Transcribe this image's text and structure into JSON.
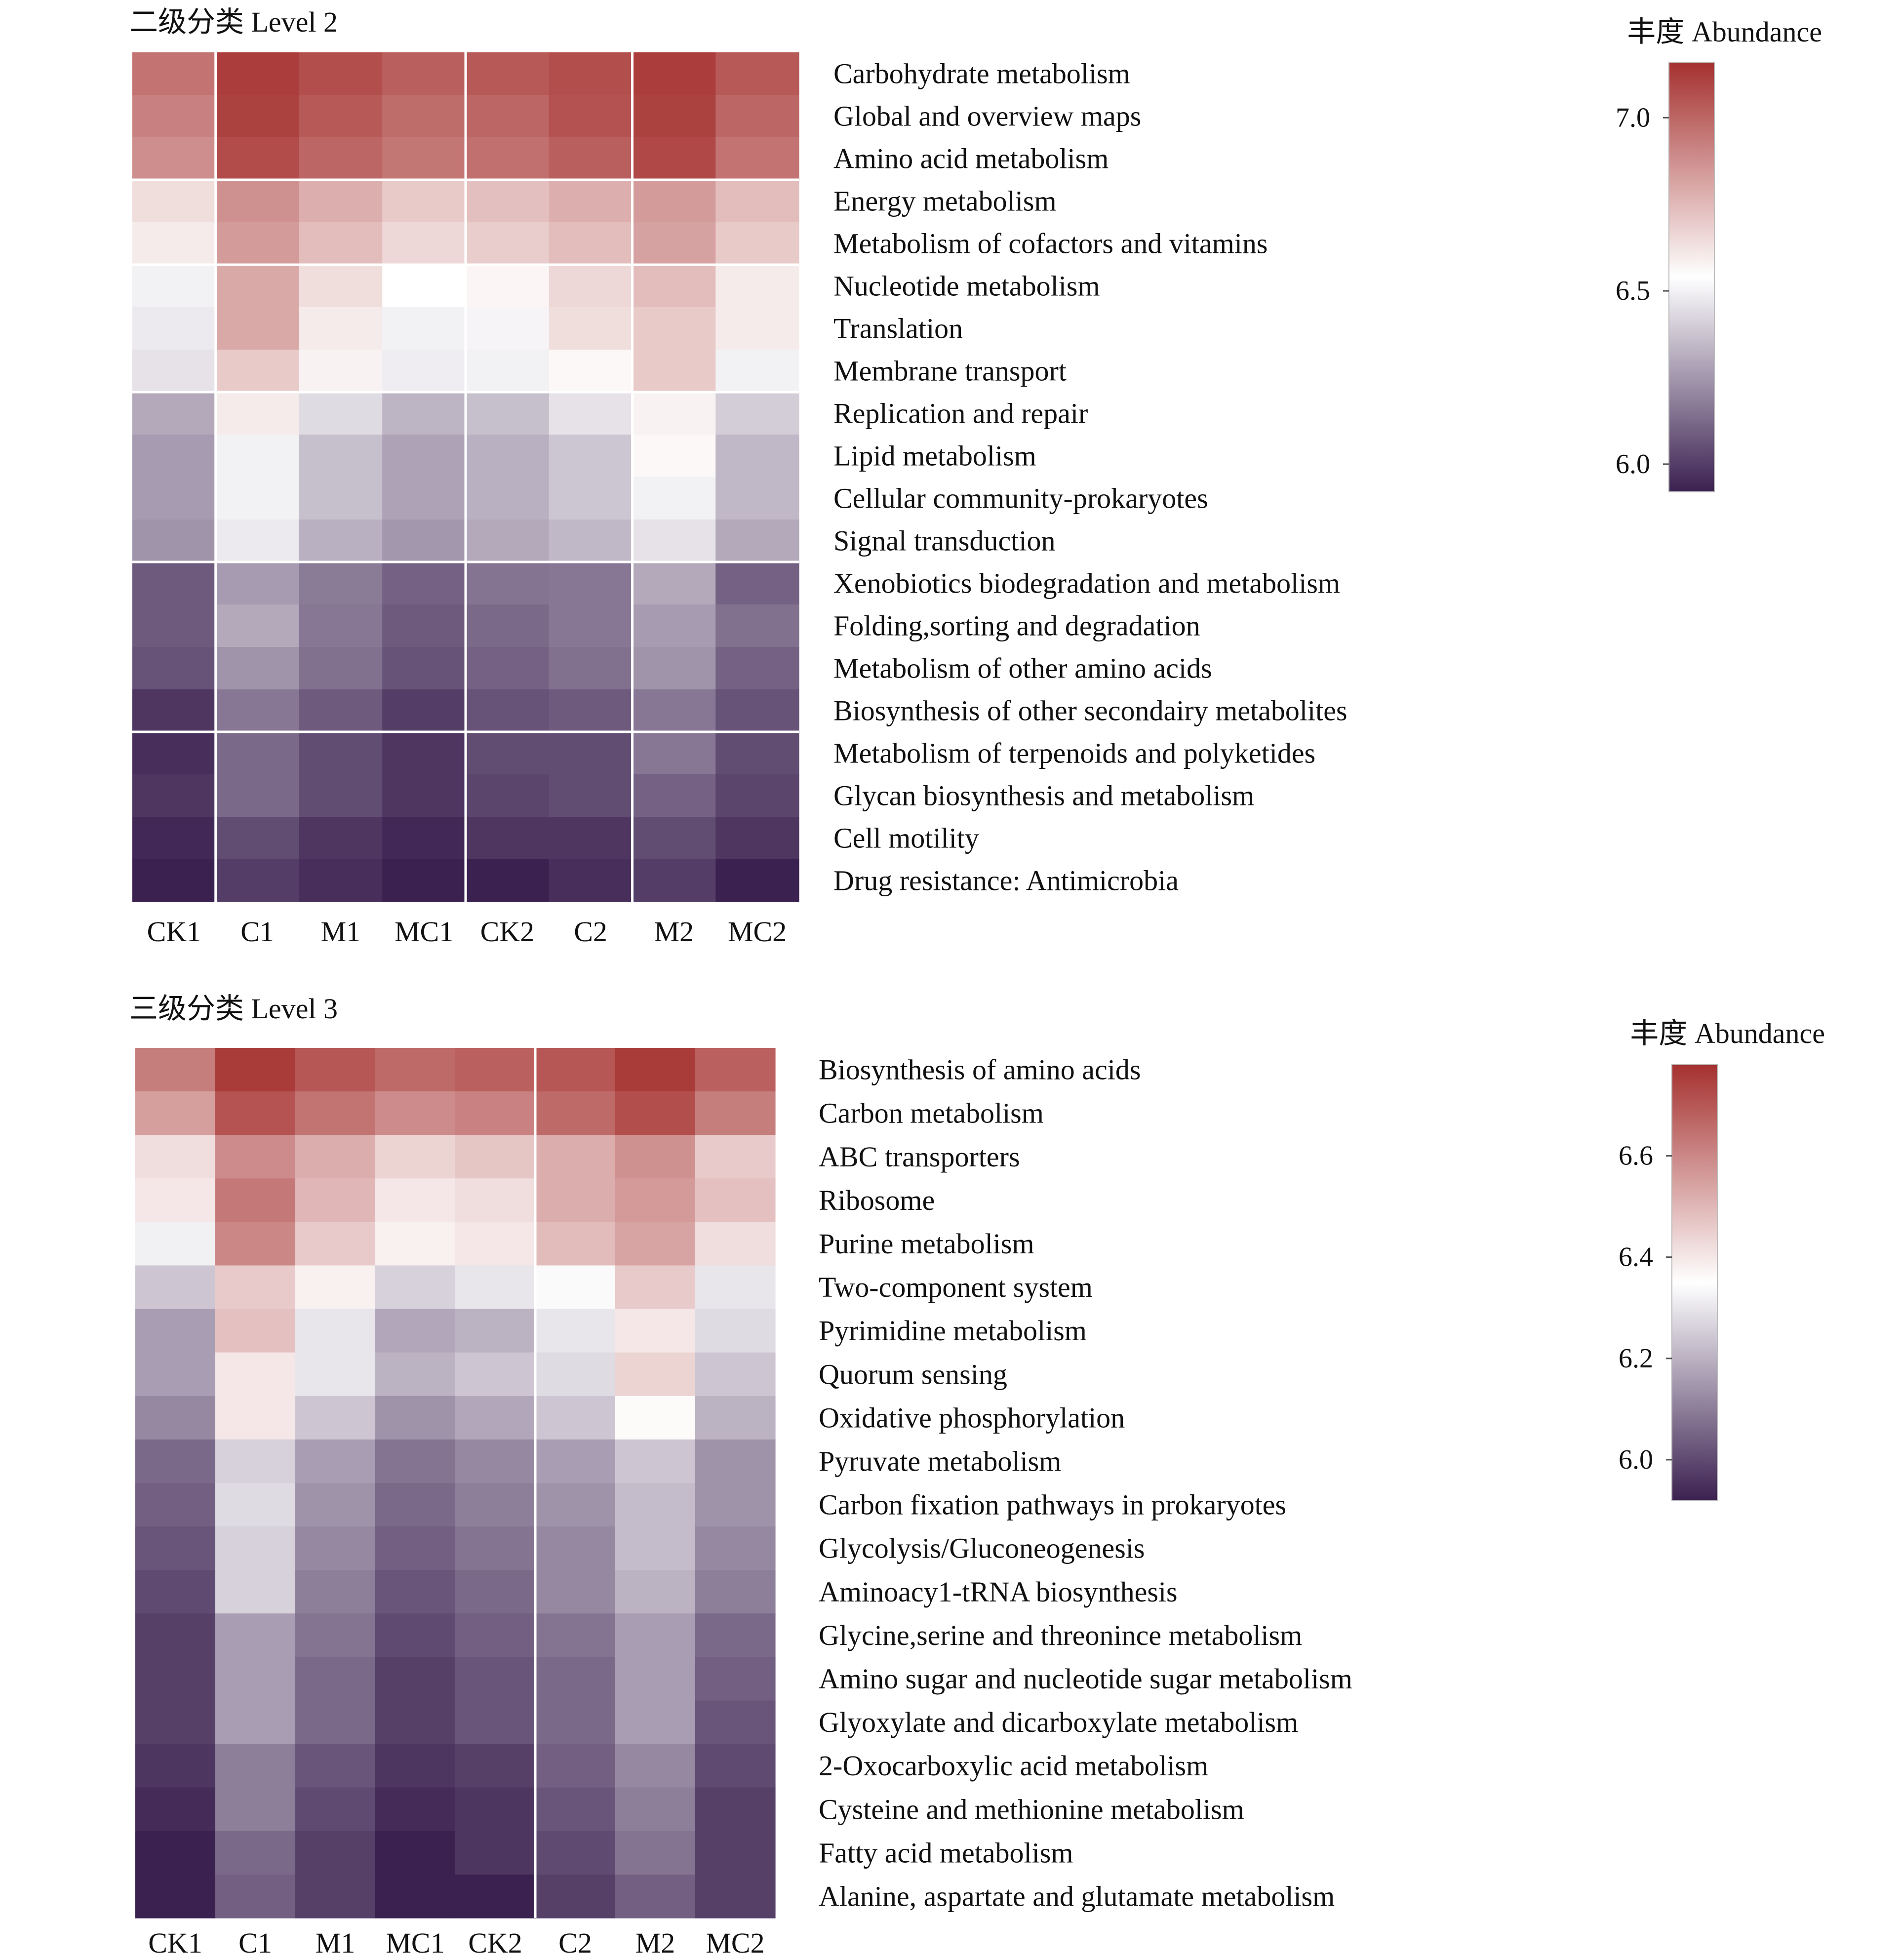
{
  "chart_data": [
    {
      "type": "heatmap",
      "title": "二级分类 Level 2",
      "legend_title": "丰度 Abundance",
      "color_scale": {
        "low": "#3b2150",
        "mid": "#ffffff",
        "high": "#a5312f"
      },
      "colorbar_range": [
        5.92,
        7.16
      ],
      "colorbar_ticks": [
        "7.0",
        "6.5",
        "6.0"
      ],
      "colorbar_tick_values": [
        7.0,
        6.5,
        6.0
      ],
      "columns": [
        "CK1",
        "C1",
        "M1",
        "MC1",
        "CK2",
        "C2",
        "M2",
        "MC2"
      ],
      "column_groups": [
        1,
        4,
        6
      ],
      "row_groups": [
        3,
        5,
        8,
        12,
        16
      ],
      "rows": [
        "Carbohydrate metabolism",
        "Global and overview maps",
        "Amino acid metabolism",
        "Energy metabolism",
        "Metabolism of cofactors and vitamins",
        "Nucleotide metabolism",
        "Translation",
        "Membrane transport",
        "Replication and repair",
        "Lipid metabolism",
        "Cellular community-prokaryotes",
        "Signal transduction",
        "Xenobiotics biodegradation and metabolism",
        "Folding,sorting and degradation",
        "Metabolism of other amino acids",
        "Biosynthesis of other secondairy metabolites",
        "Metabolism of terpenoids and polyketides",
        "Glycan biosynthesis and metabolism",
        "Cell motility",
        "Drug resistance: Antimicrobia"
      ],
      "values": [
        [
          6.96,
          7.12,
          7.07,
          7.02,
          7.04,
          7.07,
          7.12,
          7.04
        ],
        [
          6.92,
          7.11,
          7.04,
          6.98,
          7.0,
          7.06,
          7.11,
          7.0
        ],
        [
          6.88,
          7.08,
          7.0,
          6.95,
          6.97,
          7.02,
          7.09,
          6.96
        ],
        [
          6.64,
          6.87,
          6.78,
          6.7,
          6.73,
          6.78,
          6.84,
          6.74
        ],
        [
          6.6,
          6.84,
          6.74,
          6.66,
          6.69,
          6.74,
          6.82,
          6.7
        ],
        [
          6.5,
          6.8,
          6.64,
          6.54,
          6.57,
          6.66,
          6.74,
          6.6
        ],
        [
          6.48,
          6.8,
          6.6,
          6.5,
          6.51,
          6.64,
          6.7,
          6.6
        ],
        [
          6.46,
          6.7,
          6.58,
          6.49,
          6.5,
          6.56,
          6.7,
          6.5
        ],
        [
          6.3,
          6.6,
          6.44,
          6.33,
          6.36,
          6.46,
          6.58,
          6.4
        ],
        [
          6.26,
          6.5,
          6.36,
          6.28,
          6.32,
          6.38,
          6.56,
          6.34
        ],
        [
          6.26,
          6.5,
          6.36,
          6.28,
          6.32,
          6.38,
          6.5,
          6.34
        ],
        [
          6.24,
          6.48,
          6.32,
          6.25,
          6.3,
          6.34,
          6.46,
          6.3
        ],
        [
          6.08,
          6.26,
          6.17,
          6.1,
          6.15,
          6.16,
          6.3,
          6.1
        ],
        [
          6.08,
          6.3,
          6.16,
          6.08,
          6.12,
          6.16,
          6.26,
          6.14
        ],
        [
          6.06,
          6.24,
          6.14,
          6.06,
          6.1,
          6.14,
          6.24,
          6.1
        ],
        [
          5.98,
          6.16,
          6.08,
          6.0,
          6.06,
          6.08,
          6.16,
          6.06
        ],
        [
          5.96,
          6.12,
          6.04,
          5.98,
          6.04,
          6.04,
          6.16,
          6.04
        ],
        [
          5.98,
          6.12,
          6.04,
          5.98,
          6.02,
          6.04,
          6.1,
          6.02
        ],
        [
          5.94,
          6.04,
          5.98,
          5.94,
          5.98,
          5.98,
          6.04,
          5.98
        ],
        [
          5.88,
          6.0,
          5.96,
          5.9,
          5.92,
          5.96,
          6.0,
          5.92
        ]
      ]
    },
    {
      "type": "heatmap",
      "title": "三级分类 Level 3",
      "legend_title": "丰度 Abundance",
      "color_scale": {
        "low": "#3b2150",
        "mid": "#ffffff",
        "high": "#a5312f"
      },
      "colorbar_range": [
        5.92,
        6.78
      ],
      "colorbar_ticks": [
        "6.6",
        "6.4",
        "6.2",
        "6.0"
      ],
      "colorbar_tick_values": [
        6.6,
        6.4,
        6.2,
        6.0
      ],
      "columns": [
        "CK1",
        "C1",
        "M1",
        "MC1",
        "CK2",
        "C2",
        "M2",
        "MC2"
      ],
      "column_groups": [
        5
      ],
      "row_groups": [],
      "rows": [
        "Biosynthesis of amino acids",
        "Carbon metabolism",
        "ABC transporters",
        "Ribosome",
        "Purine metabolism",
        "Two-component system",
        "Pyrimidine metabolism",
        "Quorum sensing",
        "Oxidative phosphorylation",
        "Pyruvate metabolism",
        "Carbon fixation pathways in prokaryotes",
        "Glycolysis/Gluconeogenesis",
        "Aminoacy1-tRNA biosynthesis",
        "Glycine,serine and threonince metabolism",
        "Amino sugar and nucleotide sugar metabolism",
        "Glyoxylate and dicarboxylate metabolism",
        "2-Oxocarboxylic acid metabolism",
        "Cysteine and methionine metabolism",
        "Fatty acid metabolism",
        "Alanine, aspartate and glutamate metabolism"
      ],
      "values": [
        [
          6.62,
          6.76,
          6.7,
          6.66,
          6.68,
          6.7,
          6.76,
          6.68
        ],
        [
          6.55,
          6.71,
          6.64,
          6.59,
          6.61,
          6.66,
          6.72,
          6.62
        ],
        [
          6.42,
          6.59,
          6.52,
          6.44,
          6.47,
          6.52,
          6.58,
          6.46
        ],
        [
          6.4,
          6.63,
          6.5,
          6.4,
          6.42,
          6.52,
          6.56,
          6.48
        ],
        [
          6.32,
          6.6,
          6.46,
          6.38,
          6.4,
          6.49,
          6.54,
          6.42
        ],
        [
          6.24,
          6.46,
          6.38,
          6.26,
          6.3,
          6.34,
          6.46,
          6.3
        ],
        [
          6.16,
          6.48,
          6.3,
          6.18,
          6.2,
          6.3,
          6.4,
          6.28
        ],
        [
          6.16,
          6.4,
          6.3,
          6.2,
          6.24,
          6.28,
          6.44,
          6.24
        ],
        [
          6.12,
          6.4,
          6.24,
          6.14,
          6.18,
          6.24,
          6.36,
          6.2
        ],
        [
          6.06,
          6.26,
          6.16,
          6.08,
          6.12,
          6.16,
          6.24,
          6.14
        ],
        [
          6.04,
          6.28,
          6.14,
          6.06,
          6.1,
          6.14,
          6.22,
          6.14
        ],
        [
          6.02,
          6.26,
          6.12,
          6.04,
          6.08,
          6.12,
          6.22,
          6.12
        ],
        [
          6.0,
          6.26,
          6.1,
          6.02,
          6.06,
          6.12,
          6.2,
          6.1
        ],
        [
          5.98,
          6.16,
          6.08,
          6.0,
          6.04,
          6.08,
          6.16,
          6.06
        ],
        [
          5.98,
          6.16,
          6.06,
          5.98,
          6.02,
          6.06,
          6.16,
          6.04
        ],
        [
          5.98,
          6.16,
          6.06,
          5.98,
          6.02,
          6.06,
          6.16,
          6.02
        ],
        [
          5.96,
          6.1,
          6.02,
          5.96,
          5.98,
          6.04,
          6.12,
          6.0
        ],
        [
          5.94,
          6.1,
          6.0,
          5.94,
          5.96,
          6.02,
          6.1,
          5.98
        ],
        [
          5.92,
          6.06,
          5.98,
          5.92,
          5.96,
          6.0,
          6.08,
          5.98
        ],
        [
          5.92,
          6.04,
          5.98,
          5.9,
          5.92,
          5.98,
          6.04,
          5.98
        ]
      ]
    }
  ]
}
